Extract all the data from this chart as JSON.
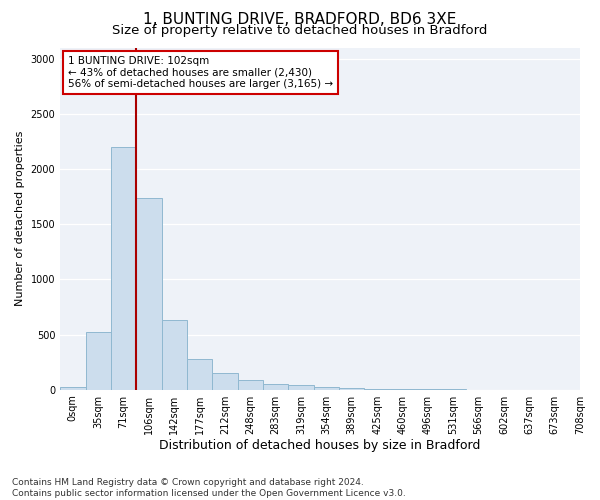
{
  "title_line1": "1, BUNTING DRIVE, BRADFORD, BD6 3XE",
  "title_line2": "Size of property relative to detached houses in Bradford",
  "xlabel": "Distribution of detached houses by size in Bradford",
  "ylabel": "Number of detached properties",
  "footnote": "Contains HM Land Registry data © Crown copyright and database right 2024.\nContains public sector information licensed under the Open Government Licence v3.0.",
  "bin_labels": [
    "0sqm",
    "35sqm",
    "71sqm",
    "106sqm",
    "142sqm",
    "177sqm",
    "212sqm",
    "248sqm",
    "283sqm",
    "319sqm",
    "354sqm",
    "389sqm",
    "425sqm",
    "460sqm",
    "496sqm",
    "531sqm",
    "566sqm",
    "602sqm",
    "637sqm",
    "673sqm",
    "708sqm"
  ],
  "bar_values": [
    25,
    520,
    2200,
    1740,
    630,
    275,
    150,
    85,
    55,
    40,
    25,
    15,
    10,
    5,
    2,
    2,
    1,
    0,
    0,
    1
  ],
  "bar_color": "#ccdded",
  "bar_edge_color": "#90b8d0",
  "vline_color": "#aa0000",
  "annotation_box_text": "1 BUNTING DRIVE: 102sqm\n← 43% of detached houses are smaller (2,430)\n56% of semi-detached houses are larger (3,165) →",
  "ylim": [
    0,
    3100
  ],
  "yticks": [
    0,
    500,
    1000,
    1500,
    2000,
    2500,
    3000
  ],
  "plot_bg_color": "#eef2f8",
  "title1_fontsize": 11,
  "title2_fontsize": 9.5,
  "xlabel_fontsize": 9,
  "ylabel_fontsize": 8,
  "tick_fontsize": 7,
  "annotation_fontsize": 7.5,
  "footnote_fontsize": 6.5
}
